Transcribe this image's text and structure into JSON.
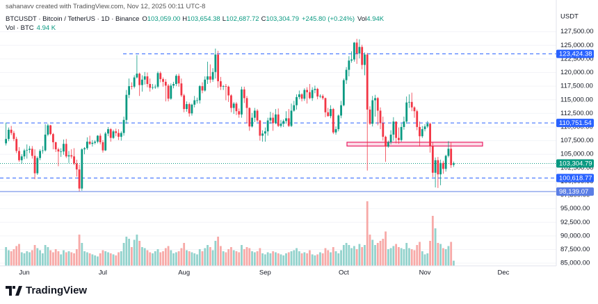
{
  "header": {
    "credit": "sahanavv created with TradingView.com, Nov 12, 2025 00:11 UTC-8",
    "symbol": "BTCUSDT · Bitcoin / TetherUS · 1D · Binance",
    "stats": [
      {
        "key": "O",
        "value": "103,059.00"
      },
      {
        "key": "H",
        "value": "103,654.38"
      },
      {
        "key": "L",
        "value": "102,687.72"
      },
      {
        "key": "C",
        "value": "103,304.79"
      }
    ],
    "change": "+245.80 (+0.24%)",
    "vol_key": "Vol",
    "vol_value": "4.94K",
    "vol_pane": "Vol · BTC",
    "vol_pane_value": "4.94 K"
  },
  "chart_data": {
    "type": "candlestick",
    "y_axis_title": "USDT",
    "up_color": "#089981",
    "down_color": "#f23645",
    "vol_up_color": "#92d2cc",
    "vol_down_color": "#f7a9a7",
    "ylim": [
      84500,
      129500
    ],
    "yticks": [
      {
        "value": 85000,
        "label": "85,000.00"
      },
      {
        "value": 87500,
        "label": "87,500.00"
      },
      {
        "value": 90000,
        "label": "90,000.00"
      },
      {
        "value": 92500,
        "label": "92,500.00"
      },
      {
        "value": 95000,
        "label": "95,000.00"
      },
      {
        "value": 97500,
        "label": "97,500.00"
      },
      {
        "value": 100000,
        "label": "100,000.00"
      },
      {
        "value": 102500,
        "label": "102,500.00"
      },
      {
        "value": 105000,
        "label": "105,000.00"
      },
      {
        "value": 107500,
        "label": "107,500.00"
      },
      {
        "value": 110000,
        "label": "110,000.00"
      },
      {
        "value": 112500,
        "label": "112,500.00"
      },
      {
        "value": 115000,
        "label": "115,000.00"
      },
      {
        "value": 117500,
        "label": "117,500.00"
      },
      {
        "value": 120000,
        "label": "120,000.00"
      },
      {
        "value": 122500,
        "label": "122,500.00"
      },
      {
        "value": 125000,
        "label": "125,000.00"
      },
      {
        "value": 127500,
        "label": "127,500.00"
      }
    ],
    "x_labels": [
      "Jun",
      "Jul",
      "Aug",
      "Sep",
      "Oct",
      "Nov",
      "Dec"
    ],
    "levels": [
      {
        "value": 123424.38,
        "label": "123,424.38",
        "style": "dashed",
        "color": "#2962ff"
      },
      {
        "value": 110751.54,
        "label": "110,751.54",
        "style": "dashed",
        "color": "#2962ff"
      },
      {
        "value": 100618.77,
        "label": "100,618.77",
        "style": "dashed",
        "color": "#2962ff"
      },
      {
        "value": 98139.07,
        "label": "98,139.07",
        "style": "solid",
        "color": "#5b7ee5"
      },
      {
        "value": 103304.79,
        "label": "103,304.79",
        "style": "dotted",
        "color": "#089981"
      }
    ],
    "zone": [
      106500,
      107200
    ],
    "zone_color": "#e91e63",
    "ohlc": [
      [
        107000,
        110800,
        106600,
        107800
      ],
      [
        107800,
        109900,
        107400,
        109500
      ],
      [
        109500,
        110200,
        108500,
        108900
      ],
      [
        108900,
        109300,
        107400,
        107800
      ],
      [
        107800,
        108200,
        105200,
        105600
      ],
      [
        105600,
        106300,
        103600,
        103900
      ],
      [
        103900,
        105000,
        103300,
        104600
      ],
      [
        104600,
        106000,
        104100,
        105700
      ],
      [
        105700,
        106800,
        104200,
        105800
      ],
      [
        105800,
        106500,
        105200,
        106000
      ],
      [
        106000,
        106500,
        104200,
        104700
      ],
      [
        104700,
        105900,
        100400,
        101500
      ],
      [
        101500,
        104600,
        101200,
        104300
      ],
      [
        104300,
        105900,
        103900,
        105600
      ],
      [
        105600,
        106500,
        105100,
        105700
      ],
      [
        105700,
        110500,
        105500,
        108600
      ],
      [
        108600,
        110600,
        108300,
        110300
      ],
      [
        110300,
        110400,
        108500,
        108700
      ],
      [
        108700,
        108900,
        105900,
        107200
      ],
      [
        107200,
        107300,
        105400,
        105900
      ],
      [
        105900,
        106200,
        102800,
        105500
      ],
      [
        105500,
        106100,
        104500,
        105500
      ],
      [
        105500,
        107700,
        104900,
        106900
      ],
      [
        106900,
        107800,
        104300,
        104600
      ],
      [
        104600,
        105600,
        103400,
        104800
      ],
      [
        104800,
        105900,
        104200,
        104600
      ],
      [
        104600,
        106100,
        103000,
        103300
      ],
      [
        103300,
        104000,
        100900,
        102200
      ],
      [
        102200,
        103100,
        98200,
        98700
      ],
      [
        98700,
        106100,
        98300,
        105900
      ],
      [
        105900,
        106300,
        105000,
        106100
      ],
      [
        106100,
        108100,
        105800,
        107300
      ],
      [
        107300,
        108400,
        106700,
        106900
      ],
      [
        106900,
        107600,
        106400,
        107100
      ],
      [
        107100,
        107600,
        106800,
        107300
      ],
      [
        107300,
        108500,
        107000,
        108400
      ],
      [
        108400,
        108800,
        106800,
        107200
      ],
      [
        107200,
        107600,
        105300,
        105700
      ],
      [
        105700,
        109100,
        105600,
        108800
      ],
      [
        108800,
        110000,
        108300,
        109600
      ],
      [
        109600,
        109800,
        107300,
        108000
      ],
      [
        108000,
        109500,
        107800,
        109200
      ],
      [
        109200,
        109700,
        108300,
        108900
      ],
      [
        108900,
        109600,
        107600,
        108200
      ],
      [
        108200,
        109200,
        107500,
        108900
      ],
      [
        108900,
        111900,
        108400,
        111300
      ],
      [
        111300,
        116800,
        110600,
        115900
      ],
      [
        115900,
        118900,
        115300,
        117500
      ],
      [
        117500,
        118200,
        116900,
        117400
      ],
      [
        117400,
        119500,
        117100,
        119100
      ],
      [
        119100,
        123200,
        118900,
        119800
      ],
      [
        119800,
        120000,
        115700,
        117700
      ],
      [
        117700,
        119500,
        116500,
        118700
      ],
      [
        118700,
        120100,
        117800,
        119300
      ],
      [
        119300,
        120000,
        117300,
        117900
      ],
      [
        117900,
        118900,
        116500,
        117200
      ],
      [
        117200,
        117900,
        116900,
        117300
      ],
      [
        117300,
        117800,
        117000,
        117400
      ],
      [
        117400,
        120200,
        117100,
        119900
      ],
      [
        119900,
        120200,
        118200,
        118800
      ],
      [
        118800,
        119100,
        117400,
        118300
      ],
      [
        118300,
        118800,
        114700,
        117600
      ],
      [
        117600,
        117900,
        114700,
        115200
      ],
      [
        115200,
        118000,
        115000,
        117600
      ],
      [
        117600,
        118300,
        117100,
        117900
      ],
      [
        117900,
        119700,
        117500,
        119400
      ],
      [
        119400,
        119800,
        117400,
        118000
      ],
      [
        118000,
        118900,
        115500,
        115800
      ],
      [
        115800,
        116100,
        112700,
        113300
      ],
      [
        113300,
        114700,
        112800,
        114200
      ],
      [
        114200,
        114500,
        111900,
        112500
      ],
      [
        112500,
        114300,
        112100,
        114100
      ],
      [
        114100,
        115700,
        113600,
        114900
      ],
      [
        114900,
        115400,
        114300,
        114900
      ],
      [
        114900,
        117700,
        114300,
        117500
      ],
      [
        117500,
        118200,
        116200,
        116700
      ],
      [
        116700,
        119300,
        116500,
        118700
      ],
      [
        118700,
        122000,
        117900,
        119300
      ],
      [
        119300,
        121500,
        118100,
        118700
      ],
      [
        118700,
        120800,
        118300,
        120100
      ],
      [
        120100,
        124400,
        118900,
        123300
      ],
      [
        123300,
        124000,
        117200,
        118400
      ],
      [
        118400,
        119200,
        116800,
        117400
      ],
      [
        117400,
        117700,
        116800,
        117500
      ],
      [
        117500,
        117900,
        114900,
        117400
      ],
      [
        117400,
        117600,
        114600,
        115800
      ],
      [
        115800,
        116000,
        112700,
        113500
      ],
      [
        113500,
        114600,
        112400,
        114300
      ],
      [
        114300,
        114600,
        112200,
        112900
      ],
      [
        112900,
        113400,
        111700,
        112300
      ],
      [
        112300,
        117400,
        111700,
        116900
      ],
      [
        116900,
        117400,
        114400,
        115300
      ],
      [
        115300,
        115700,
        110700,
        113500
      ],
      [
        113500,
        113600,
        109300,
        110100
      ],
      [
        110100,
        112600,
        109900,
        111700
      ],
      [
        111700,
        113500,
        110900,
        113000
      ],
      [
        113000,
        113300,
        110900,
        111200
      ],
      [
        111200,
        111300,
        107500,
        108400
      ],
      [
        108400,
        109400,
        107300,
        108800
      ],
      [
        108800,
        109900,
        107300,
        109200
      ],
      [
        109200,
        111700,
        108400,
        111200
      ],
      [
        111200,
        112800,
        110600,
        111700
      ],
      [
        111700,
        112600,
        109300,
        110700
      ],
      [
        110700,
        113300,
        110500,
        112300
      ],
      [
        112300,
        113400,
        110000,
        110200
      ],
      [
        110200,
        111300,
        109900,
        110600
      ],
      [
        110600,
        111400,
        110000,
        111100
      ],
      [
        111100,
        112900,
        110600,
        111600
      ],
      [
        111600,
        113300,
        110000,
        110200
      ],
      [
        110200,
        114300,
        110000,
        113000
      ],
      [
        113000,
        114800,
        112800,
        114000
      ],
      [
        114000,
        116000,
        113200,
        115500
      ],
      [
        115500,
        116700,
        115100,
        116000
      ],
      [
        116000,
        116200,
        114700,
        115200
      ],
      [
        115200,
        117100,
        114800,
        116800
      ],
      [
        116800,
        117300,
        114300,
        116400
      ],
      [
        116400,
        117900,
        115100,
        115300
      ],
      [
        115300,
        117300,
        114800,
        116800
      ],
      [
        116800,
        117600,
        116200,
        117000
      ],
      [
        117000,
        117200,
        115100,
        115600
      ],
      [
        115600,
        116000,
        115300,
        115700
      ],
      [
        115700,
        116000,
        115000,
        115300
      ],
      [
        115300,
        115400,
        111800,
        112700
      ],
      [
        112700,
        113500,
        111900,
        112000
      ],
      [
        112000,
        114000,
        111600,
        113300
      ],
      [
        113300,
        113500,
        108700,
        109000
      ],
      [
        109000,
        110100,
        108600,
        109600
      ],
      [
        109600,
        112300,
        109200,
        112100
      ],
      [
        112100,
        114800,
        111600,
        114000
      ],
      [
        114000,
        118900,
        113800,
        118600
      ],
      [
        118600,
        121000,
        117900,
        120500
      ],
      [
        120500,
        123000,
        119300,
        122200
      ],
      [
        122200,
        123900,
        121800,
        122400
      ],
      [
        122400,
        125600,
        122000,
        125500
      ],
      [
        125500,
        126200,
        121600,
        123500
      ],
      [
        123500,
        126100,
        122600,
        124700
      ],
      [
        124700,
        125100,
        120600,
        121400
      ],
      [
        121400,
        123700,
        119500,
        123300
      ],
      [
        123300,
        123600,
        102000,
        113200
      ],
      [
        113200,
        113800,
        110400,
        110600
      ],
      [
        110600,
        115700,
        110100,
        114900
      ],
      [
        114900,
        115900,
        111900,
        115300
      ],
      [
        115300,
        115500,
        110300,
        113000
      ],
      [
        113000,
        113600,
        109600,
        110700
      ],
      [
        110700,
        111900,
        107500,
        108200
      ],
      [
        108200,
        108400,
        103600,
        106400
      ],
      [
        106400,
        107500,
        106200,
        107200
      ],
      [
        107200,
        109400,
        106800,
        108600
      ],
      [
        108600,
        111800,
        107500,
        111000
      ],
      [
        111000,
        111000,
        107000,
        108000
      ],
      [
        108000,
        109900,
        106900,
        107600
      ],
      [
        107600,
        110600,
        107300,
        110000
      ],
      [
        110000,
        111900,
        109500,
        111000
      ],
      [
        111000,
        115600,
        110600,
        114500
      ],
      [
        114500,
        116000,
        113500,
        114600
      ],
      [
        114600,
        116300,
        112900,
        113600
      ],
      [
        113600,
        113800,
        111700,
        112900
      ],
      [
        112900,
        113200,
        109400,
        110000
      ],
      [
        110000,
        111000,
        106400,
        108300
      ],
      [
        108300,
        110200,
        108000,
        109600
      ],
      [
        109600,
        110500,
        109200,
        110100
      ],
      [
        110100,
        111100,
        109800,
        110600
      ],
      [
        110600,
        110800,
        105300,
        106500
      ],
      [
        106500,
        107200,
        100800,
        101600
      ],
      [
        101600,
        104400,
        98900,
        103900
      ],
      [
        103900,
        104500,
        98800,
        101300
      ],
      [
        101300,
        104000,
        99300,
        103400
      ],
      [
        103400,
        103800,
        101400,
        102300
      ],
      [
        102300,
        104900,
        101800,
        104700
      ],
      [
        104700,
        107400,
        104400,
        106000
      ],
      [
        106000,
        107200,
        102500,
        103000
      ],
      [
        103059,
        103654.38,
        102687.72,
        103304.79
      ]
    ],
    "volume": [
      18000,
      15000,
      14000,
      16000,
      19000,
      21000,
      13000,
      12000,
      14000,
      13000,
      15000,
      20000,
      17000,
      15000,
      12000,
      20000,
      18000,
      15000,
      13000,
      16000,
      14000,
      11000,
      15000,
      13000,
      14000,
      13000,
      12000,
      16000,
      30000,
      22000,
      14000,
      13000,
      12000,
      11000,
      10000,
      9000,
      12000,
      15000,
      14000,
      13000,
      12000,
      11000,
      10000,
      13000,
      14000,
      22000,
      28000,
      26000,
      18000,
      25000,
      30000,
      24000,
      18000,
      17000,
      15000,
      13000,
      12000,
      14000,
      16000,
      13000,
      14000,
      17000,
      19000,
      15000,
      12000,
      13000,
      14000,
      17000,
      22000,
      15000,
      14000,
      13000,
      12000,
      11000,
      16000,
      14000,
      17000,
      20000,
      18000,
      15000,
      24000,
      28000,
      19000,
      14000,
      13000,
      16000,
      18000,
      15000,
      14000,
      13000,
      20000,
      16000,
      18000,
      17000,
      14000,
      13000,
      14000,
      17000,
      12000,
      11000,
      13000,
      12000,
      14000,
      13000,
      12000,
      11000,
      10000,
      12000,
      13000,
      14000,
      15000,
      17000,
      14000,
      12000,
      13000,
      12000,
      15000,
      11000,
      10000,
      11000,
      13000,
      12000,
      17000,
      15000,
      13000,
      18000,
      14000,
      12000,
      15000,
      20000,
      22000,
      20000,
      17000,
      19000,
      16000,
      21000,
      18000,
      20000,
      62000,
      30000,
      25000,
      20000,
      22000,
      24000,
      26000,
      33000,
      16000,
      17000,
      19000,
      21000,
      18000,
      17000,
      16000,
      22000,
      17000,
      16000,
      15000,
      20000,
      23000,
      14000,
      11000,
      12000,
      24000,
      48000,
      36000,
      22000,
      21000,
      17000,
      16000,
      19000,
      23000,
      4940
    ]
  },
  "footer": {
    "brand": "TradingView"
  }
}
